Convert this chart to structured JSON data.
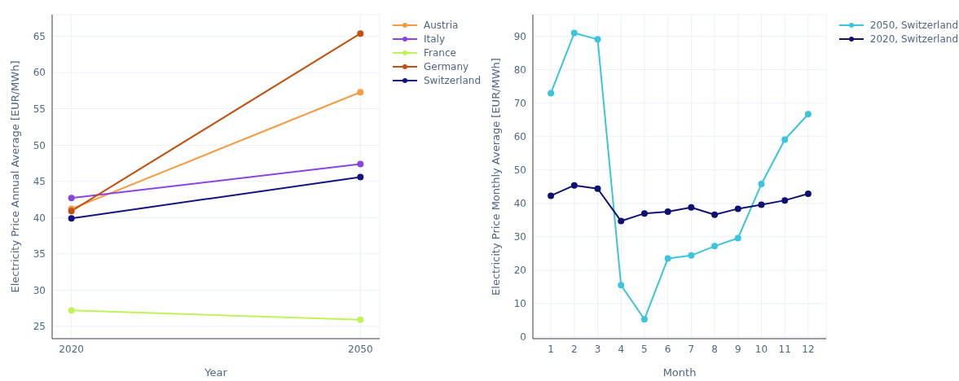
{
  "chart_data": [
    {
      "type": "line",
      "xlabel": "Year",
      "ylabel": "Electricity Price Annual Average [EUR/MWh]",
      "x": [
        2020,
        2050
      ],
      "xlim": [
        2018,
        2052
      ],
      "xticks": [
        2020,
        2050
      ],
      "ylim": [
        23.3,
        68
      ],
      "yticks": [
        25,
        30,
        35,
        40,
        45,
        50,
        55,
        60,
        65
      ],
      "grid": true,
      "legend": "top right",
      "marker": "circle",
      "line_style": "solid",
      "series": [
        {
          "name": "Austria",
          "color": "#f59b42",
          "values": [
            41.2,
            57.3
          ]
        },
        {
          "name": "Italy",
          "color": "#8a44e0",
          "values": [
            42.7,
            47.4
          ]
        },
        {
          "name": "France",
          "color": "#c0f35a",
          "values": [
            27.2,
            25.9
          ]
        },
        {
          "name": "Germany",
          "color": "#c2500f",
          "values": [
            40.9,
            65.4
          ]
        },
        {
          "name": "Switzerland",
          "color": "#14147e",
          "values": [
            39.9,
            45.6
          ]
        }
      ]
    },
    {
      "type": "line",
      "xlabel": "Month",
      "ylabel": "Electricity Price Monthly Average [EUR/MWh]",
      "x": [
        1,
        2,
        3,
        4,
        5,
        6,
        7,
        8,
        9,
        10,
        11,
        12
      ],
      "xlim": [
        0.23,
        12.77
      ],
      "xticks": [
        1,
        2,
        3,
        4,
        5,
        6,
        7,
        8,
        9,
        10,
        11,
        12
      ],
      "ylim": [
        -0.5,
        96.5
      ],
      "yticks": [
        0,
        10,
        20,
        30,
        40,
        50,
        60,
        70,
        80,
        90
      ],
      "grid": true,
      "legend": "top right",
      "marker": "circle",
      "line_style": "solid",
      "series": [
        {
          "name": "2050, Switzerland",
          "color": "#3cc4dc",
          "values": [
            73,
            91,
            89.1,
            15.5,
            5.3,
            23.5,
            24.4,
            27.2,
            29.6,
            45.8,
            59.1,
            66.7
          ]
        },
        {
          "name": "2020, Switzerland",
          "color": "#0f1170",
          "values": [
            42.3,
            45.4,
            44.4,
            34.7,
            37,
            37.5,
            38.8,
            36.6,
            38.4,
            39.6,
            40.9,
            42.9
          ]
        }
      ]
    }
  ]
}
